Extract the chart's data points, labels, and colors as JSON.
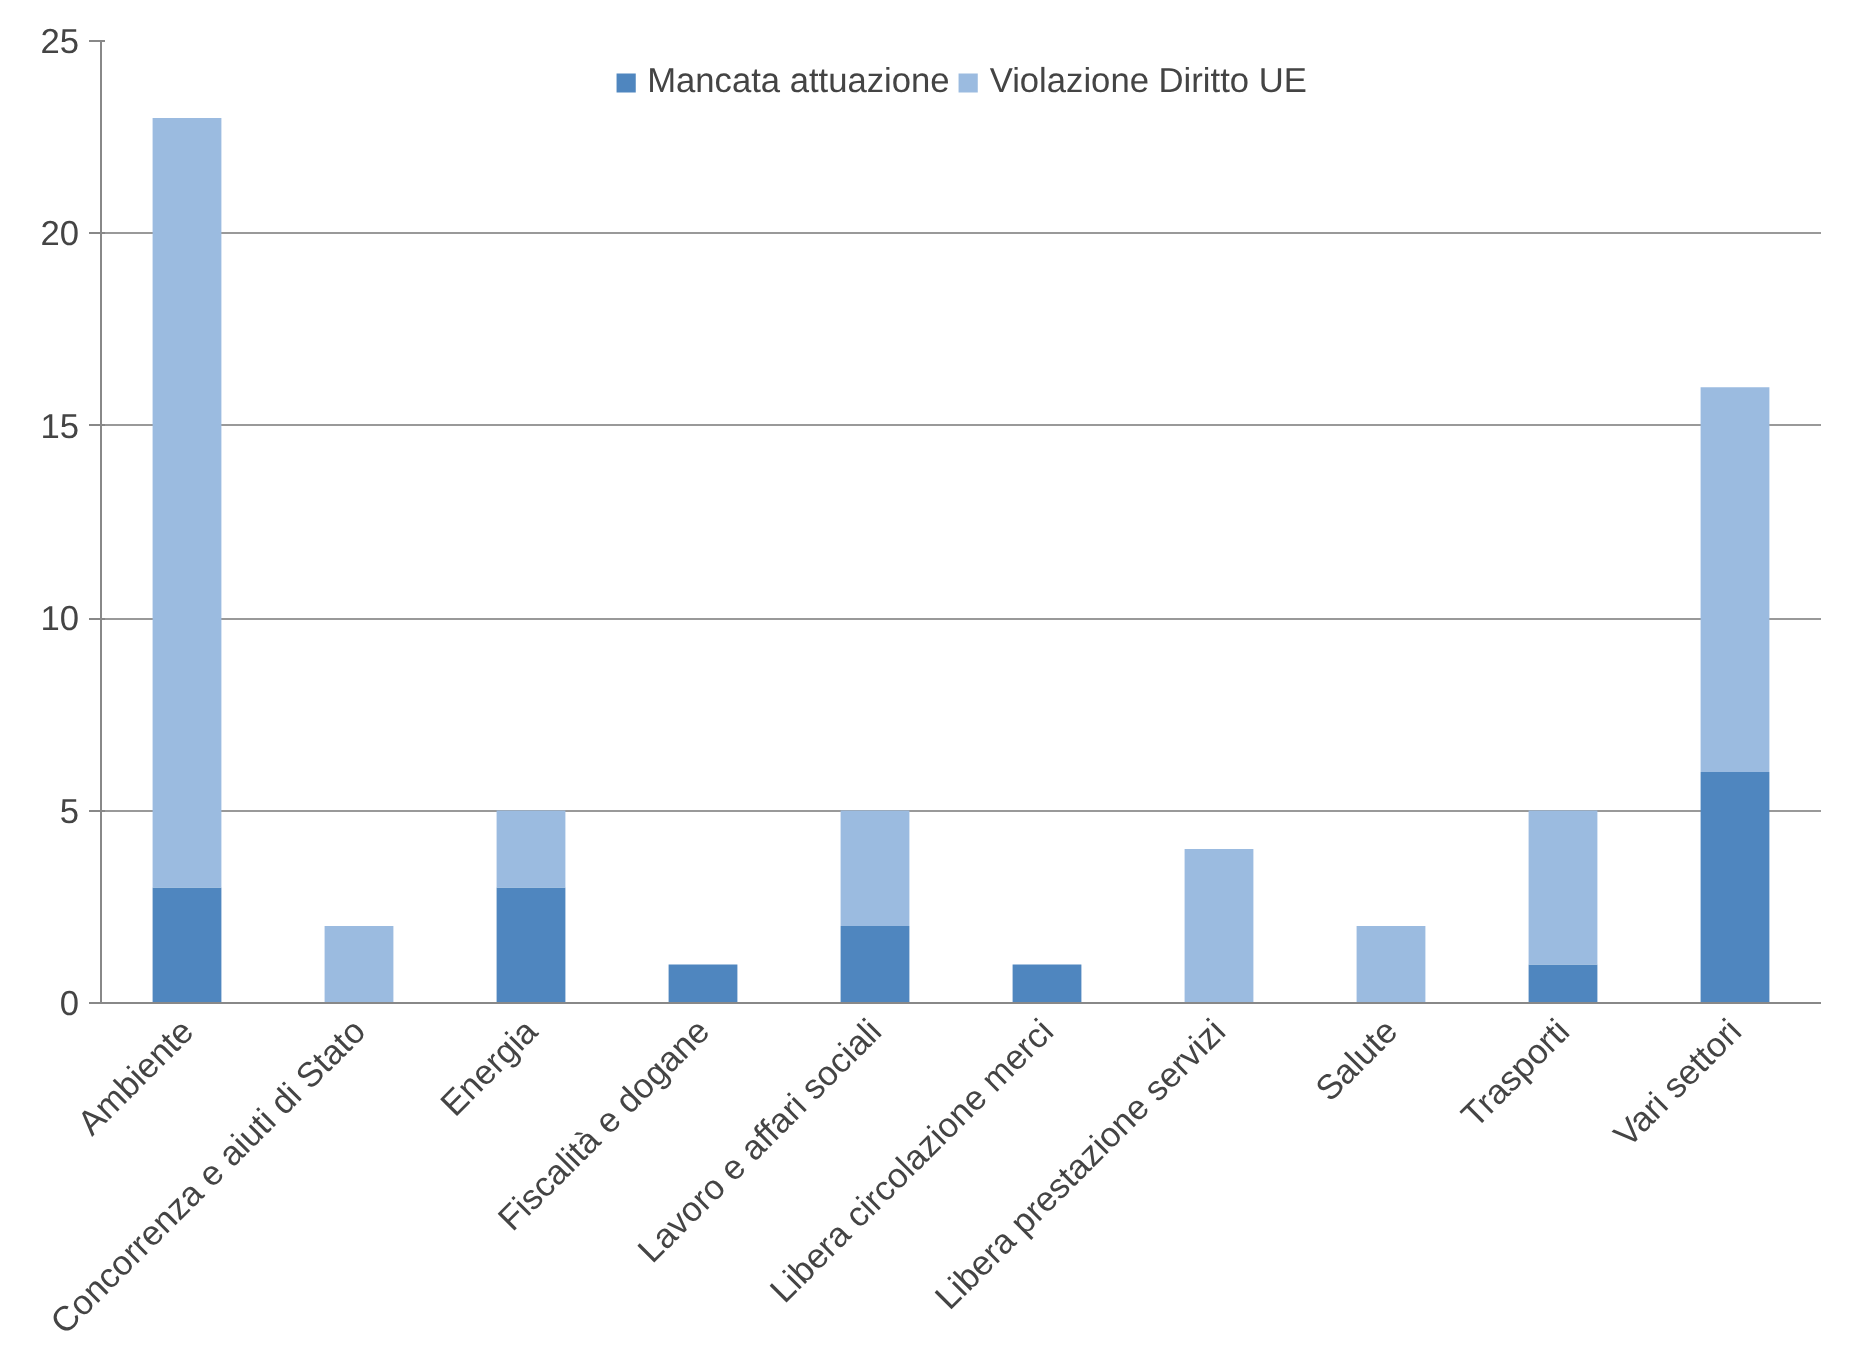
{
  "chart_data": {
    "type": "bar",
    "stacked": true,
    "categories": [
      "Ambiente",
      "Concorrenza e aiuti di Stato",
      "Energia",
      "Fiscalità e dogane",
      "Lavoro e affari sociali",
      "Libera circolazione merci",
      "Libera prestazione servizi",
      "Salute",
      "Trasporti",
      "Vari settori"
    ],
    "series": [
      {
        "name": "Mancata attuazione",
        "color": "#4f86bf",
        "values": [
          3,
          0,
          3,
          1,
          2,
          1,
          0,
          0,
          1,
          6
        ]
      },
      {
        "name": "Violazione Diritto UE",
        "color": "#9bbbe0",
        "values": [
          20,
          2,
          2,
          0,
          3,
          0,
          4,
          2,
          4,
          10
        ]
      }
    ],
    "ylim": [
      0,
      25
    ],
    "yticks": [
      0,
      5,
      10,
      15,
      20,
      25
    ],
    "grid": "y",
    "legend": "top"
  }
}
